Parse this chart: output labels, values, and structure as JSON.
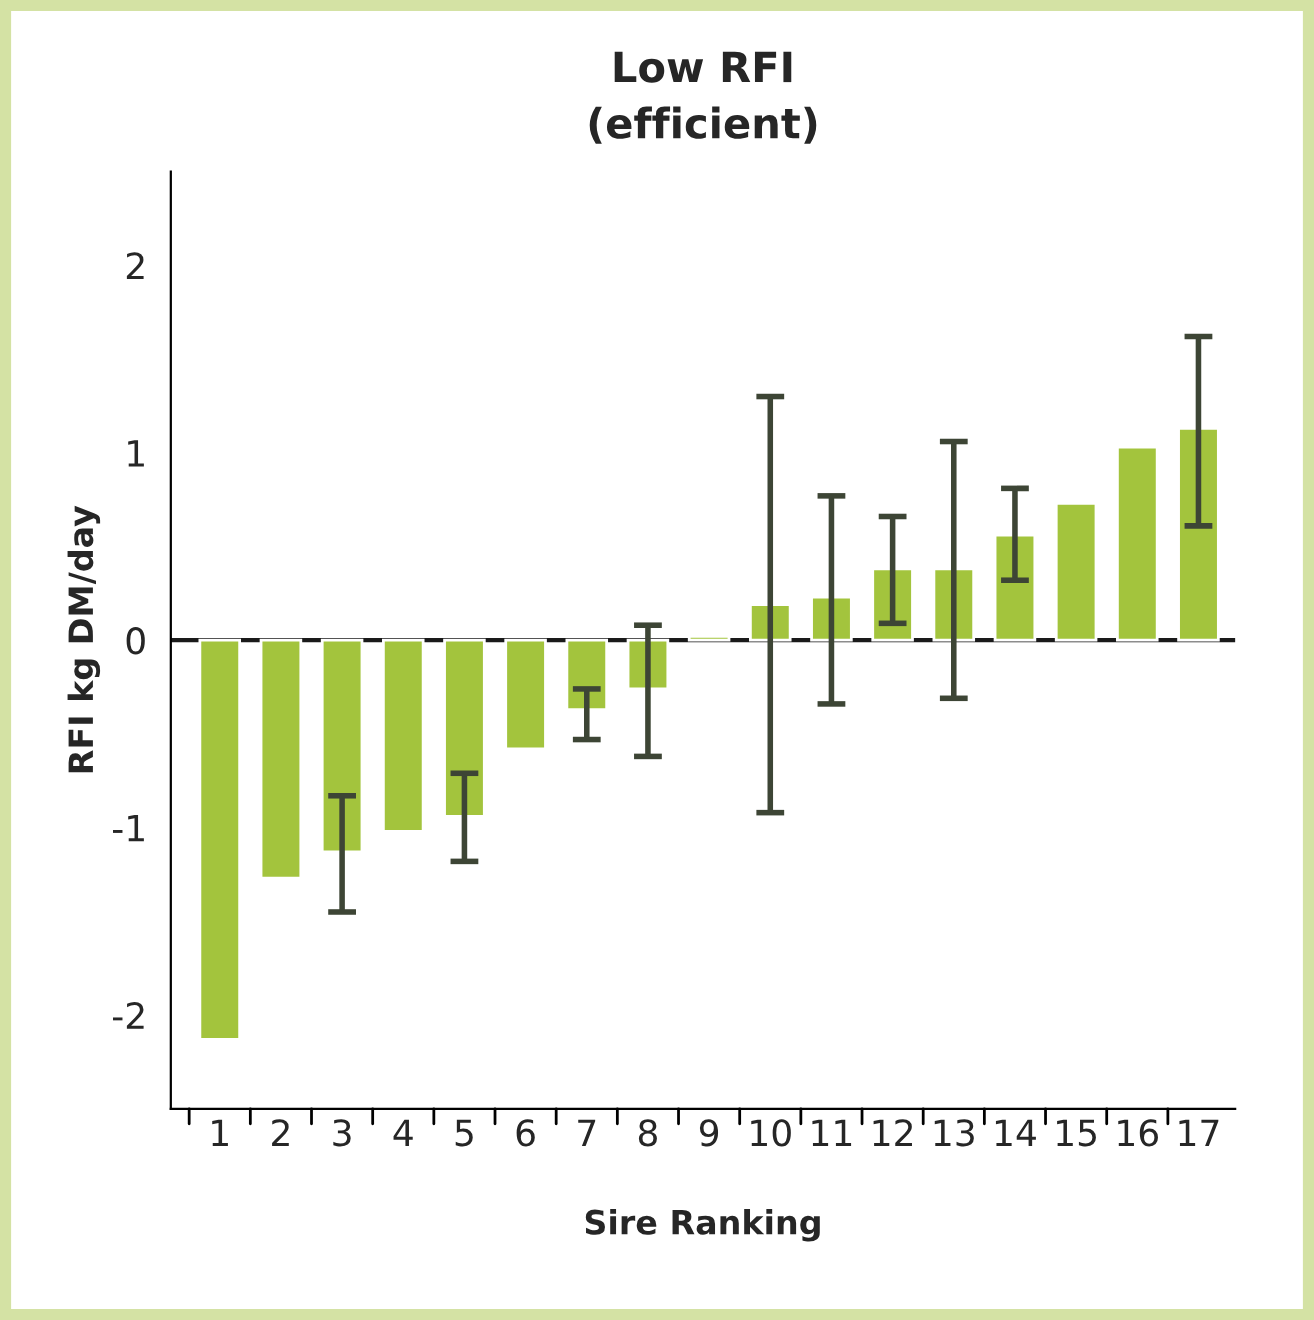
{
  "chart_data": {
    "type": "bar",
    "title": "Low RFI\n(efficient)",
    "xlabel": "Sire Ranking",
    "ylabel": "RFI kg DM/day",
    "categories": [
      "1",
      "2",
      "3",
      "4",
      "5",
      "6",
      "7",
      "8",
      "9",
      "10",
      "11",
      "12",
      "13",
      "14",
      "15",
      "16",
      "17"
    ],
    "values": [
      -2.13,
      -1.27,
      -1.13,
      -1.02,
      -0.94,
      -0.58,
      -0.37,
      -0.26,
      0.02,
      0.19,
      0.23,
      0.38,
      0.38,
      0.56,
      0.73,
      1.03,
      1.13
    ],
    "errors": [
      null,
      null,
      [
        -1.45,
        -0.83
      ],
      null,
      [
        -1.18,
        -0.71
      ],
      null,
      [
        -0.53,
        -0.26
      ],
      [
        -0.62,
        0.08
      ],
      null,
      [
        -0.92,
        1.3
      ],
      [
        -0.34,
        0.77
      ],
      [
        0.09,
        0.66
      ],
      [
        -0.31,
        1.06
      ],
      [
        0.32,
        0.81
      ],
      null,
      null,
      [
        0.61,
        1.62
      ]
    ],
    "color": "#a3c43d",
    "ylim": [
      -2.5,
      2.5
    ],
    "yticks": [
      -2,
      -1,
      0,
      1,
      2
    ],
    "ref_lines": [
      {
        "axis": "y",
        "value": 0,
        "color": "#1a1a1a"
      }
    ],
    "grid": false,
    "legend": false
  }
}
